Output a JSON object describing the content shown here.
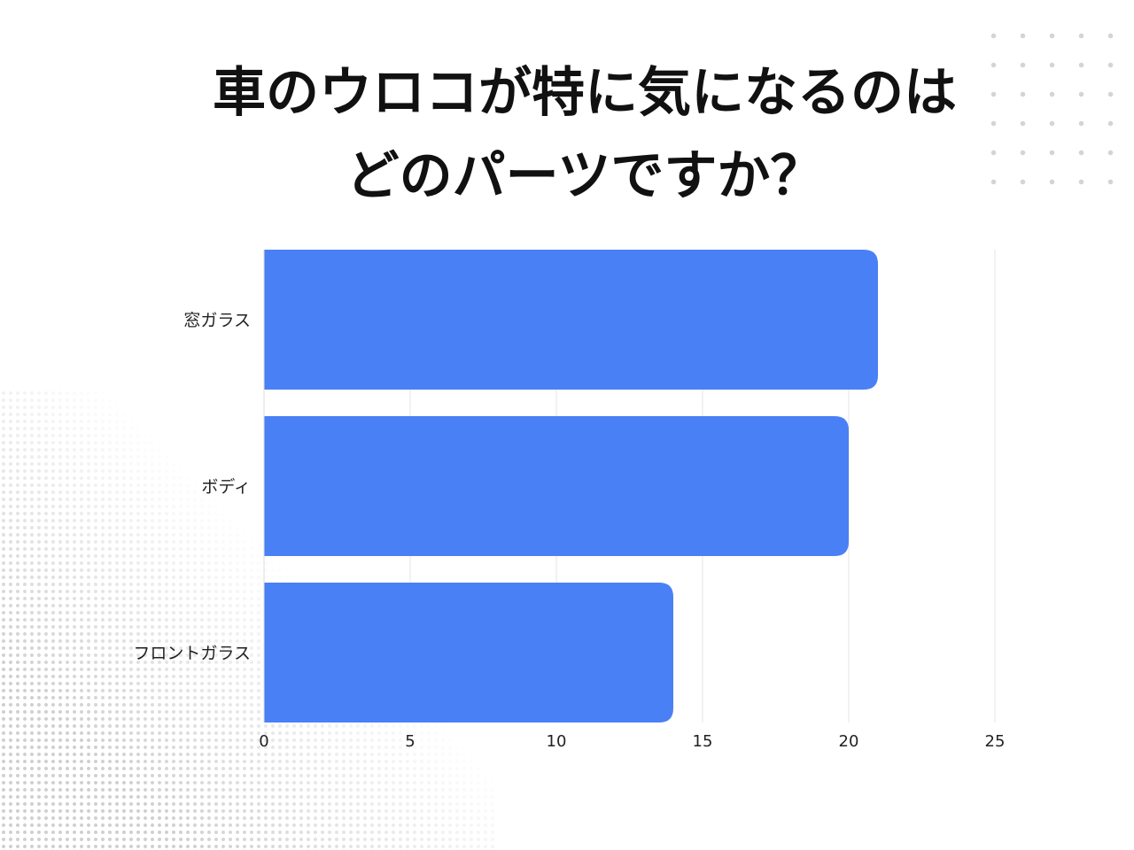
{
  "chart_data": {
    "type": "bar",
    "orientation": "horizontal",
    "title_lines": [
      "車のウロコが特に気になるのは",
      "どのパーツですか？"
    ],
    "categories": [
      "窓ガラス",
      "ボディ",
      "フロントガラス"
    ],
    "values": [
      21,
      20,
      14
    ],
    "xlim": [
      0,
      25
    ],
    "xticks": [
      "0",
      "5",
      "10",
      "15",
      "20",
      "25"
    ],
    "grid": true,
    "bar_color": "#4a80f5",
    "grid_color": "#e6e6e6"
  }
}
